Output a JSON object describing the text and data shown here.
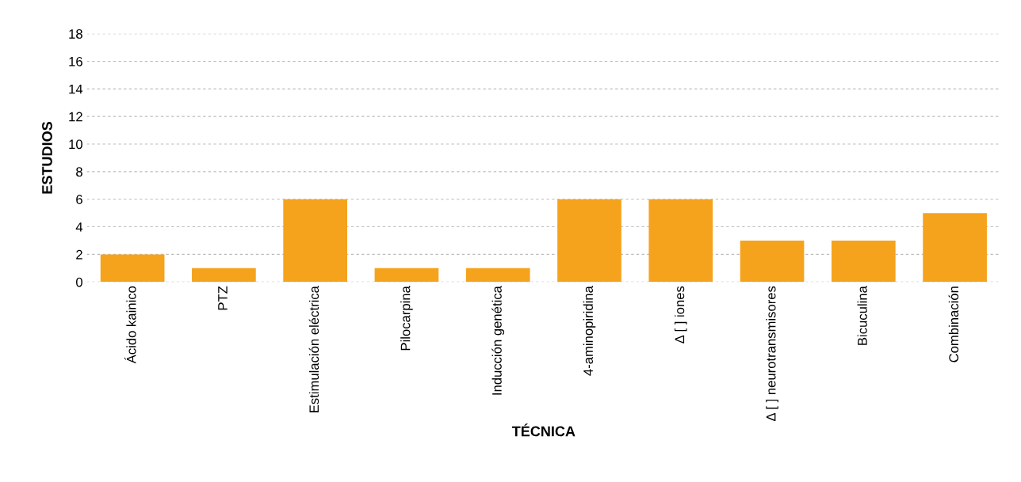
{
  "chart_data": {
    "type": "bar",
    "xlabel": "TÉCNICA",
    "ylabel": "ESTUDIOS",
    "categories": [
      "Ácido kainico",
      "PTZ",
      "Estimulación eléctrica",
      "Pilocarpina",
      "Inducción genética",
      "4-aminopiridina",
      "Δ [ ] iones",
      "Δ [ ] neurotransmisores",
      "Bicuculina",
      "Combinación"
    ],
    "values": [
      2,
      1,
      6,
      1,
      1,
      6,
      6,
      3,
      3,
      5
    ],
    "color": "#f5a31c",
    "ylim": [
      0,
      18
    ],
    "yticks": [
      0,
      2,
      4,
      6,
      8,
      10,
      12,
      14,
      16,
      18
    ],
    "grid": "y",
    "legend": false
  }
}
